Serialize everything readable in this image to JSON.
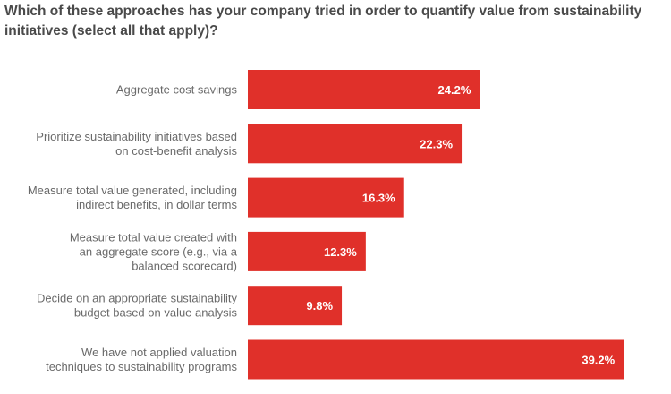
{
  "chart_data": {
    "type": "bar",
    "orientation": "horizontal",
    "title": "Which of these approaches has your company tried in order to quantify value from sustainability initiatives (select all that apply)?",
    "categories": [
      [
        "Aggregate cost savings"
      ],
      [
        "Prioritize sustainability initiatives based",
        "on cost-benefit analysis"
      ],
      [
        "Measure total value generated, including",
        "indirect benefits, in dollar terms"
      ],
      [
        "Measure total value created with",
        "an aggregate score (e.g., via a",
        "balanced scorecard)"
      ],
      [
        "Decide on an appropriate sustainability",
        "budget based on value analysis"
      ],
      [
        "We have not applied valuation",
        "techniques to sustainability programs"
      ]
    ],
    "values": [
      24.2,
      22.3,
      16.3,
      12.3,
      9.8,
      39.2
    ],
    "value_labels": [
      "24.2%",
      "22.3%",
      "16.3%",
      "12.3%",
      "9.8%",
      "39.2%"
    ],
    "unit": "%",
    "bar_color": "#e0302a",
    "grid": false,
    "legend": "none"
  }
}
